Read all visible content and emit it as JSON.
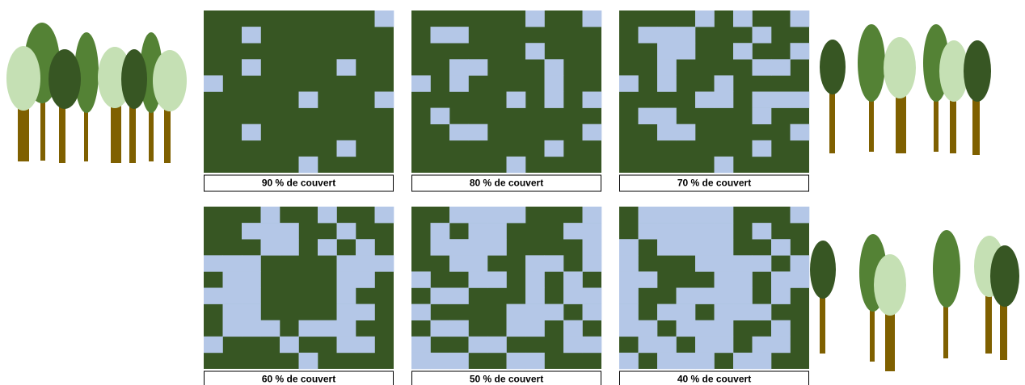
{
  "panels": [
    {
      "label": "90 % de couvert"
    },
    {
      "label": "80 % de couvert"
    },
    {
      "label": "70 % de couvert"
    },
    {
      "label": "60 % de couvert"
    },
    {
      "label": "50 % de couvert"
    },
    {
      "label": "40 % de couvert"
    }
  ]
}
